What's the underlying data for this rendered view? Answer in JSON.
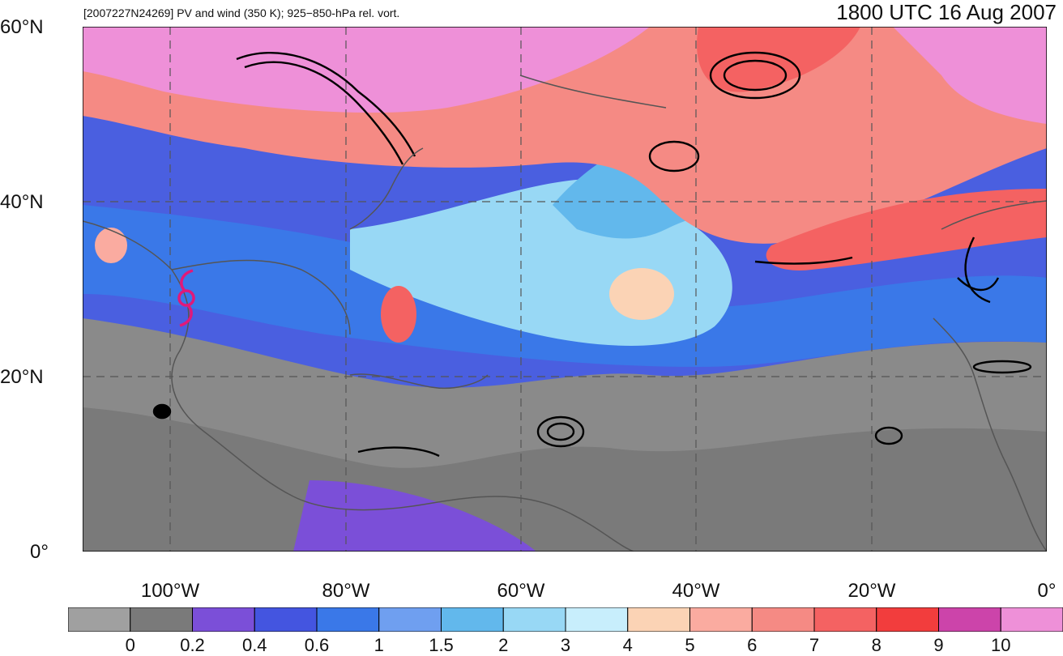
{
  "header": {
    "subtitle": "[2007227N24269] PV and wind (350 K); 925−850-hPa rel. vort.",
    "title": "1800 UTC 16 Aug 2007"
  },
  "map": {
    "lat_labels": [
      "60°N",
      "40°N",
      "20°N",
      "0°"
    ],
    "lon_labels": [
      "100°W",
      "80°W",
      "60°W",
      "40°W",
      "20°W",
      "0°"
    ],
    "lon_range": [
      -110,
      0
    ],
    "lat_range": [
      0,
      60
    ],
    "gridlines": "dashed",
    "storm_symbol": "hurricane-icon",
    "storm_color": "#e0197a",
    "contour_color": "#000000",
    "coastline_color": "#555555"
  },
  "colorbar": {
    "tick_labels": [
      "0",
      "0.2",
      "0.4",
      "0.6",
      "1",
      "1.5",
      "2",
      "3",
      "4",
      "5",
      "6",
      "7",
      "8",
      "9",
      "10"
    ],
    "colors": [
      "#a0a0a0",
      "#7a7a7a",
      "#7b4fd8",
      "#4455e0",
      "#3a78e8",
      "#6f9ff0",
      "#62b8ec",
      "#98d8f5",
      "#c8eefc",
      "#fbd3b5",
      "#faaba0",
      "#f58a84",
      "#f46262",
      "#f23d3d",
      "#cc44aa",
      "#ee90d8"
    ]
  }
}
